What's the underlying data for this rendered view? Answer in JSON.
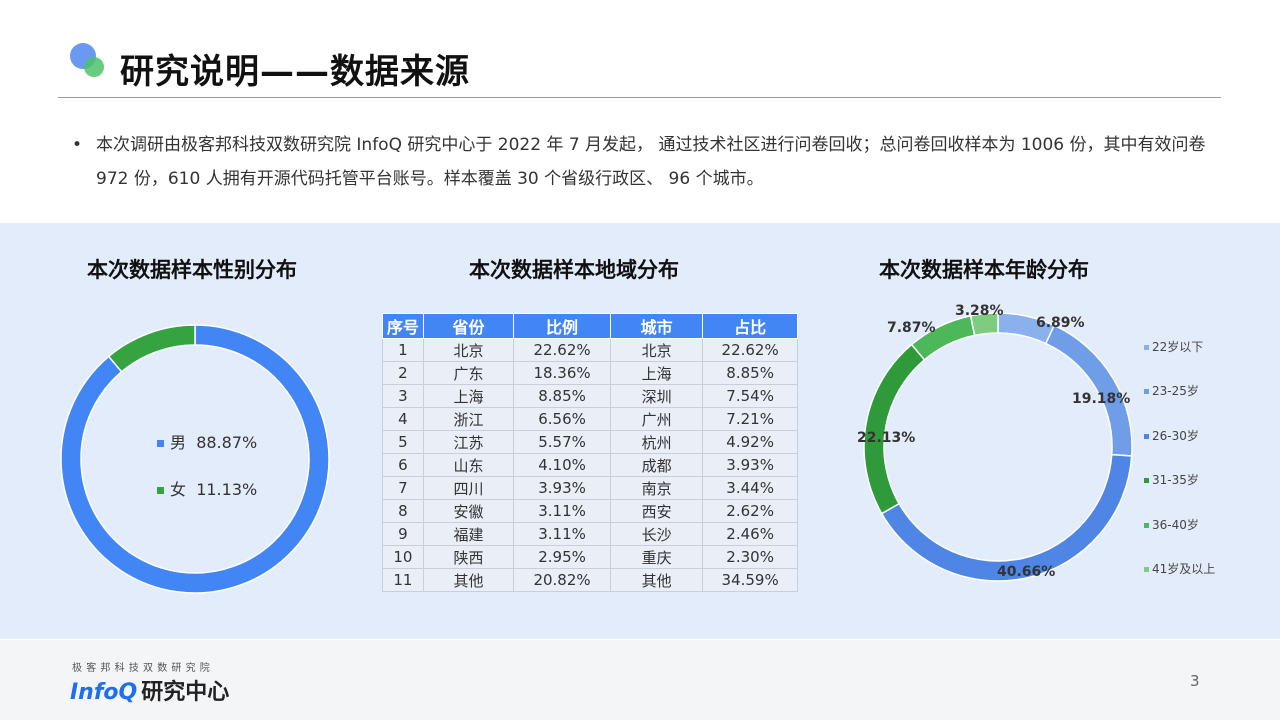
{
  "header": {
    "title": "研究说明——数据来源"
  },
  "intro": {
    "bullet": "•",
    "text": "本次调研由极客邦科技双数研究院 InfoQ 研究中心于 2022 年 7 月发起， 通过技术社区进行问卷回收；总问卷回收样本为 1006 份，其中有效问卷 972 份，610 人拥有开源代码托管平台账号。样本覆盖 30 个省级行政区、 96 个城市。"
  },
  "gender": {
    "title": "本次数据样本性别分布",
    "items": [
      {
        "label": "男",
        "value": "88.87%",
        "color": "#4285f4"
      },
      {
        "label": "女",
        "value": "11.13%",
        "color": "#34a340"
      }
    ]
  },
  "region": {
    "title": "本次数据样本地域分布",
    "headers": [
      "序号",
      "省份",
      "比例",
      "城市",
      "占比"
    ],
    "rows": [
      [
        "1",
        "北京",
        "22.62%",
        "北京",
        "22.62%"
      ],
      [
        "2",
        "广东",
        "18.36%",
        "上海",
        "8.85%"
      ],
      [
        "3",
        "上海",
        "8.85%",
        "深圳",
        "7.54%"
      ],
      [
        "4",
        "浙江",
        "6.56%",
        "广州",
        "7.21%"
      ],
      [
        "5",
        "江苏",
        "5.57%",
        "杭州",
        "4.92%"
      ],
      [
        "6",
        "山东",
        "4.10%",
        "成都",
        "3.93%"
      ],
      [
        "7",
        "四川",
        "3.93%",
        "南京",
        "3.44%"
      ],
      [
        "8",
        "安徽",
        "3.11%",
        "西安",
        "2.62%"
      ],
      [
        "9",
        "福建",
        "3.11%",
        "长沙",
        "2.46%"
      ],
      [
        "10",
        "陕西",
        "2.95%",
        "重庆",
        "2.30%"
      ],
      [
        "11",
        "其他",
        "20.82%",
        "其他",
        "34.59%"
      ]
    ]
  },
  "age": {
    "title": "本次数据样本年龄分布",
    "legend": [
      "22岁以下",
      "23-25岁",
      "26-30岁",
      "31-35岁",
      "36-40岁",
      "41岁及以上"
    ],
    "labels": [
      "6.89%",
      "19.18%",
      "40.66%",
      "22.13%",
      "7.87%",
      "3.28%"
    ]
  },
  "chart_data": [
    {
      "type": "pie",
      "title": "本次数据样本性别分布",
      "categories": [
        "男",
        "女"
      ],
      "values": [
        88.87,
        11.13
      ],
      "colors": [
        "#4285f4",
        "#34a340"
      ]
    },
    {
      "type": "pie",
      "title": "本次数据样本年龄分布",
      "categories": [
        "22岁以下",
        "23-25岁",
        "26-30岁",
        "31-35岁",
        "36-40岁",
        "41岁及以上"
      ],
      "values": [
        6.89,
        19.18,
        40.66,
        22.13,
        7.87,
        3.28
      ],
      "colors": [
        "#8ab0ee",
        "#6f9de8",
        "#4f86e5",
        "#2f9a3a",
        "#4db859",
        "#7dcc80"
      ]
    }
  ],
  "footer": {
    "subtitle": "极客邦科技双数研究院",
    "brand_infoq": "InfoQ",
    "brand_center": "研究中心",
    "page": "3"
  }
}
